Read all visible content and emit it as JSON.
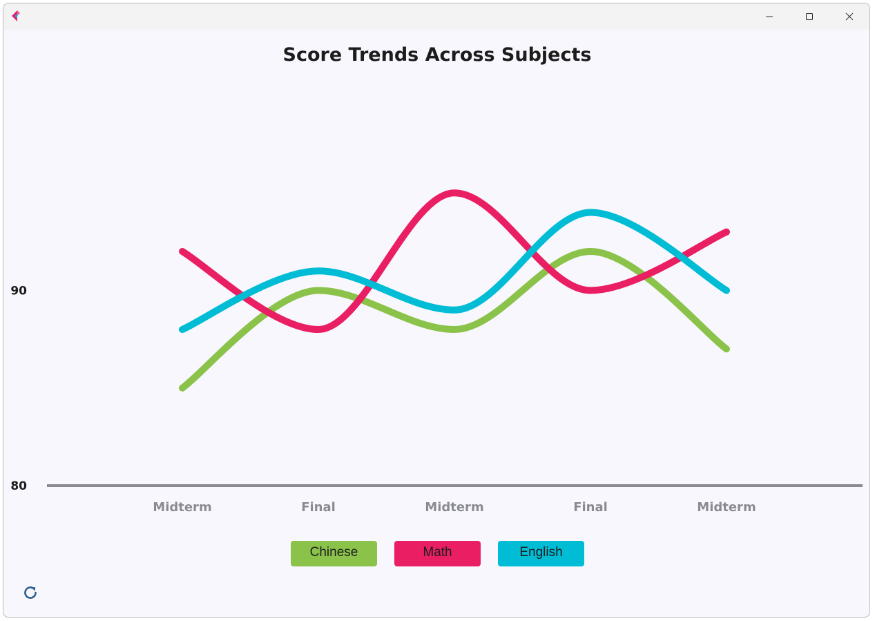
{
  "window": {
    "controls": [
      "minimize",
      "maximize",
      "close"
    ]
  },
  "chart_data": {
    "type": "line",
    "title": "Score Trends Across Subjects",
    "xlabel": "",
    "ylabel": "",
    "categories": [
      "Midterm",
      "Final",
      "Midterm",
      "Final",
      "Midterm"
    ],
    "yticks": [
      80,
      90
    ],
    "ylim": [
      80,
      100
    ],
    "grid": false,
    "legend_placement": "bottom-center",
    "series": [
      {
        "name": "Chinese",
        "color": "#8bc34a",
        "values": [
          85,
          90,
          88,
          92,
          87
        ]
      },
      {
        "name": "Math",
        "color": "#e91e63",
        "values": [
          92,
          88,
          95,
          90,
          93
        ]
      },
      {
        "name": "English",
        "color": "#00bcd4",
        "values": [
          88,
          91,
          89,
          94,
          90
        ]
      }
    ]
  },
  "icons": {
    "app_logo": "app-logo-icon",
    "refresh": "refresh-icon"
  }
}
